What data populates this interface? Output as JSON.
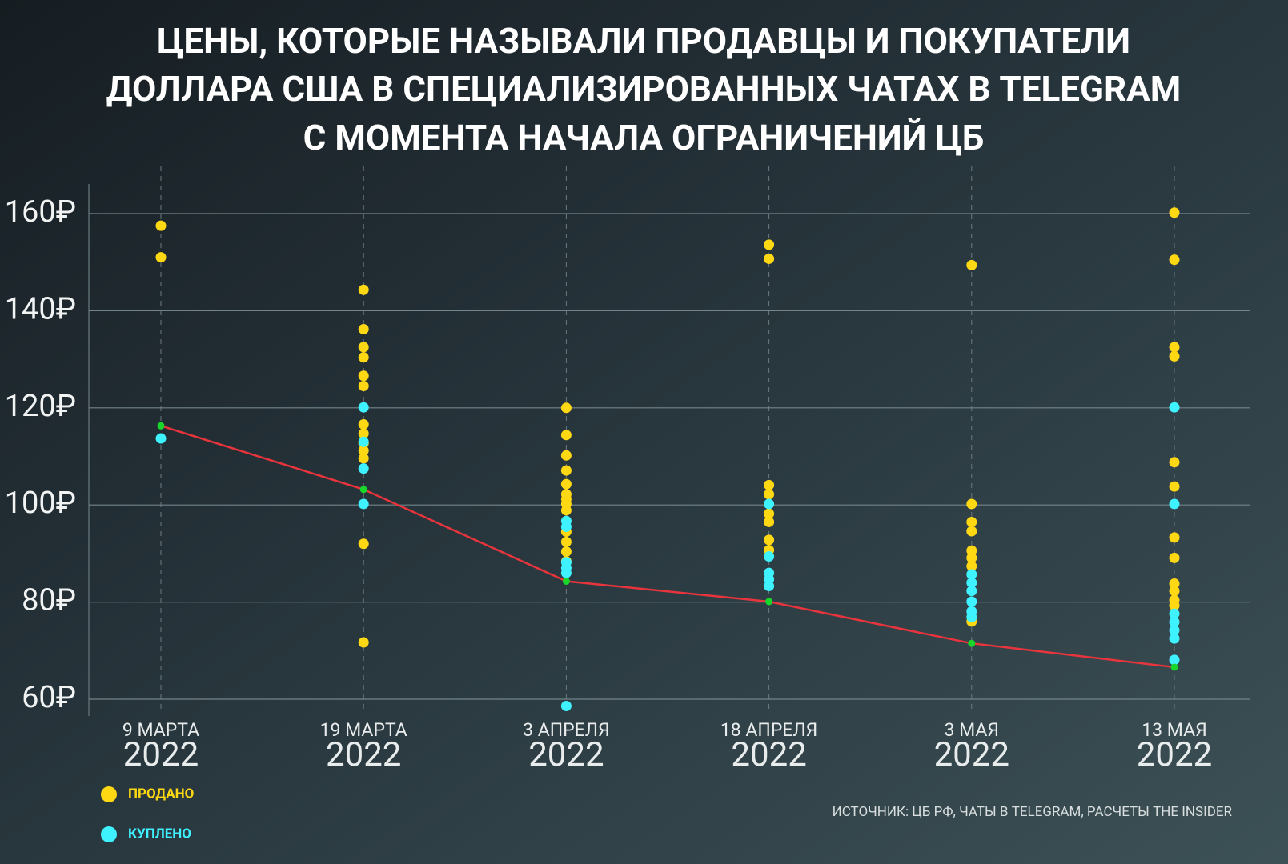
{
  "chart_data": {
    "type": "scatter",
    "title": [
      "ЦЕНЫ, КОТОРЫЕ НАЗЫВАЛИ ПРОДАВЦЫ И ПОКУПАТЕЛИ",
      "ДОЛЛАРА США В СПЕЦИАЛИЗИРОВАННЫХ ЧАТАХ В TELEGRAM",
      "С МОМЕНТА НАЧАЛА ОГРАНИЧЕНИЙ ЦБ"
    ],
    "categories": [
      "9 МАРТА 2022",
      "19 МАРТА 2022",
      "3 АПРЕЛЯ 2022",
      "18 АПРЕЛЯ 2022",
      "3 МАЯ 2022",
      "13 МАЯ 2022"
    ],
    "series": [
      {
        "name": "ПРОДАНО",
        "color": "#ffd814",
        "values": [
          [
            157.5,
            151
          ],
          [
            144.3,
            136.2,
            132.5,
            130.4,
            126.6,
            124.5,
            116.6,
            114.7,
            112.7,
            111.2,
            109.6,
            92,
            71.7
          ],
          [
            120,
            114.4,
            110.2,
            107.1,
            104.3,
            102.2,
            101.2,
            100.2,
            98.9,
            94.5,
            92.4,
            90.4,
            88.4
          ],
          [
            153.6,
            150.7,
            104.1,
            102.2,
            98.2,
            96.5,
            92.8,
            90.7
          ],
          [
            149.4,
            100.2,
            96.5,
            94.6,
            90.6,
            89.1,
            87.4,
            76
          ],
          [
            160.2,
            150.5,
            132.5,
            130.6,
            108.8,
            103.8,
            93.3,
            89.1,
            83.8,
            82.3,
            80.4,
            79.3
          ]
        ]
      },
      {
        "name": "КУПЛЕНО",
        "color": "#3ff2ff",
        "values": [
          [
            113.7
          ],
          [
            120.1,
            113,
            107.5,
            100.2
          ],
          [
            96.7,
            95.5,
            88.2,
            87,
            86,
            58.6
          ],
          [
            100.2,
            89.4,
            86,
            84.7,
            83.3
          ],
          [
            85.7,
            84,
            82.3,
            80.1,
            78.1,
            76.9
          ],
          [
            120.1,
            100.2,
            77.6,
            75.9,
            74.2,
            72.5,
            68.1
          ]
        ]
      }
    ],
    "rate": {
      "color": "#e8343c",
      "point_color": "#19d62a",
      "values": [
        116.3,
        103.2,
        84.3,
        80.1,
        71.5,
        66.6
      ]
    },
    "ylim": [
      60,
      160
    ],
    "yticks": [
      {
        "value": 60,
        "label": "60₽"
      },
      {
        "value": 80,
        "label": "80₽"
      },
      {
        "value": 100,
        "label": "100₽"
      },
      {
        "value": 120,
        "label": "120₽"
      },
      {
        "value": 140,
        "label": "140₽"
      },
      {
        "value": 160,
        "label": "160₽"
      }
    ],
    "grid": true,
    "source": "ИСТОЧНИК: ЦБ РФ, ЧАТЫ В TELEGRAM, РАСЧЕТЫ THE INSIDER"
  }
}
